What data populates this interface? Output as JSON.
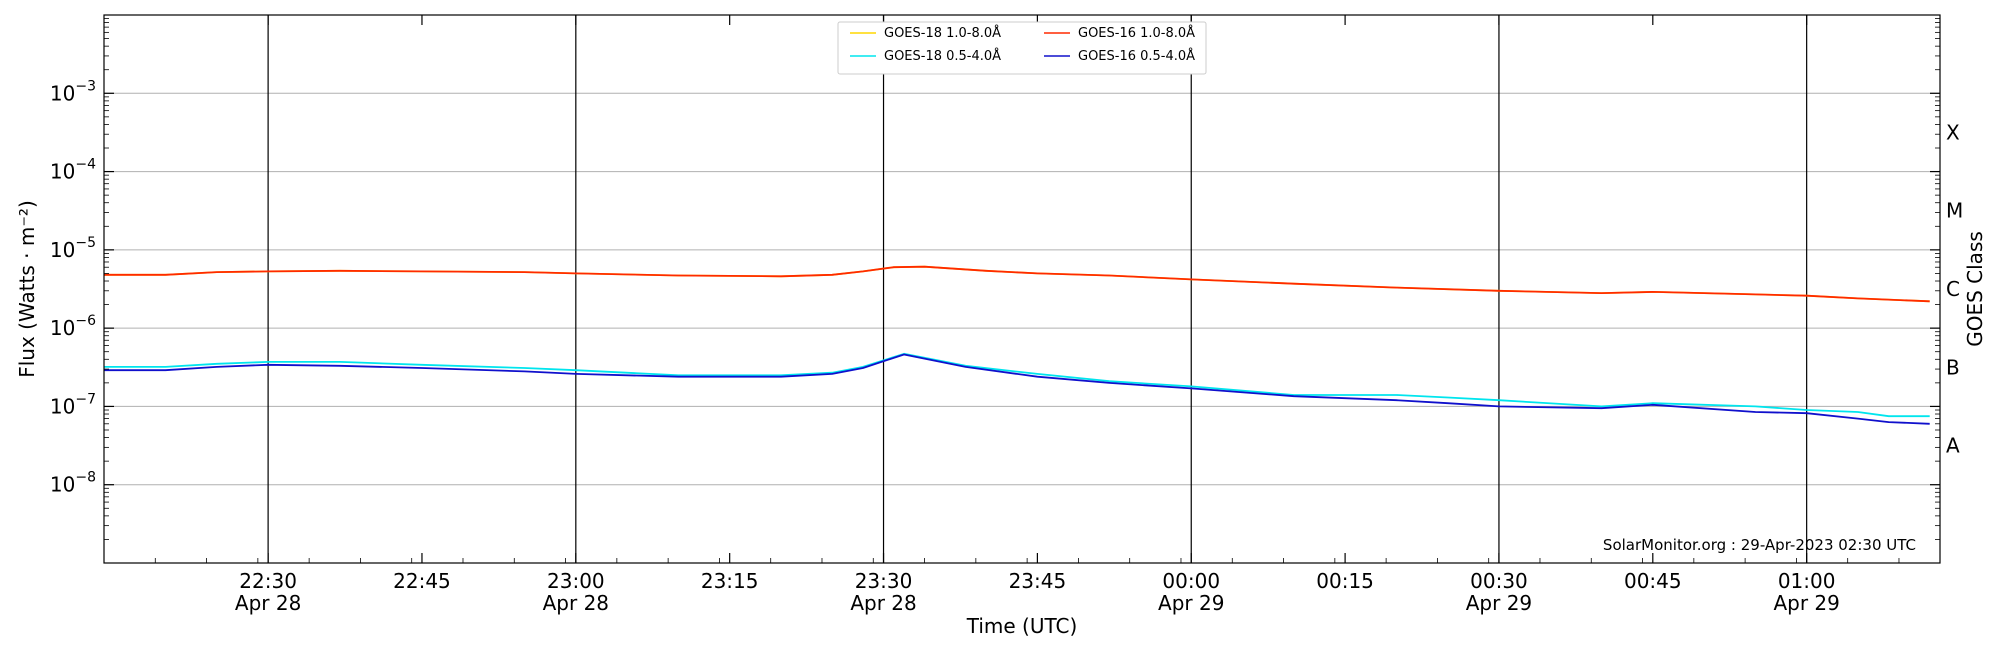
{
  "chart_data": {
    "type": "line",
    "xlabel": "Time (UTC)",
    "ylabel": "Flux (Watts · m⁻²)",
    "ylabel_right": "GOES Class",
    "y_scale": "log",
    "ylim": [
      1e-09,
      0.01
    ],
    "xlim": [
      "2023-04-28 22:14",
      "2023-04-29 01:13"
    ],
    "grid": "horizontal at decades, vertical at 30-minute marks",
    "legend_position": "top-center",
    "credit": "SolarMonitor.org : 29-Apr-2023 02:30 UTC",
    "y_ticks": [
      {
        "value": 1e-08,
        "mant": "10",
        "exp": "−8"
      },
      {
        "value": 1e-07,
        "mant": "10",
        "exp": "−7"
      },
      {
        "value": 1e-06,
        "mant": "10",
        "exp": "−6"
      },
      {
        "value": 1e-05,
        "mant": "10",
        "exp": "−5"
      },
      {
        "value": 0.0001,
        "mant": "10",
        "exp": "−4"
      },
      {
        "value": 0.001,
        "mant": "10",
        "exp": "−3"
      }
    ],
    "x_ticks": [
      {
        "t": "2023-04-28 22:30",
        "time": "22:30",
        "date": "Apr 28"
      },
      {
        "t": "2023-04-28 22:45",
        "time": "22:45",
        "date": ""
      },
      {
        "t": "2023-04-28 23:00",
        "time": "23:00",
        "date": "Apr 28"
      },
      {
        "t": "2023-04-28 23:15",
        "time": "23:15",
        "date": ""
      },
      {
        "t": "2023-04-28 23:30",
        "time": "23:30",
        "date": "Apr 28"
      },
      {
        "t": "2023-04-28 23:45",
        "time": "23:45",
        "date": ""
      },
      {
        "t": "2023-04-29 00:00",
        "time": "00:00",
        "date": "Apr 29"
      },
      {
        "t": "2023-04-29 00:15",
        "time": "00:15",
        "date": ""
      },
      {
        "t": "2023-04-29 00:30",
        "time": "00:30",
        "date": "Apr 29"
      },
      {
        "t": "2023-04-29 00:45",
        "time": "00:45",
        "date": ""
      },
      {
        "t": "2023-04-29 01:00",
        "time": "01:00",
        "date": "Apr 29"
      }
    ],
    "goes_classes": [
      {
        "label": "A",
        "value": 3.16e-08
      },
      {
        "label": "B",
        "value": 3.16e-07
      },
      {
        "label": "C",
        "value": 3.16e-06
      },
      {
        "label": "M",
        "value": 3.16e-05
      },
      {
        "label": "X",
        "value": 0.000316
      }
    ],
    "series": [
      {
        "name": "GOES-18 1.0-8.0Å",
        "color": "#ffd700",
        "x": [
          "2023-04-28 22:14",
          "2023-04-28 22:20",
          "2023-04-28 22:25",
          "2023-04-28 22:30",
          "2023-04-28 22:37",
          "2023-04-28 22:45",
          "2023-04-28 22:55",
          "2023-04-28 23:00",
          "2023-04-28 23:10",
          "2023-04-28 23:20",
          "2023-04-28 23:25",
          "2023-04-28 23:28",
          "2023-04-28 23:31",
          "2023-04-28 23:34",
          "2023-04-28 23:40",
          "2023-04-28 23:45",
          "2023-04-28 23:52",
          "2023-04-29 00:00",
          "2023-04-29 00:10",
          "2023-04-29 00:20",
          "2023-04-29 00:30",
          "2023-04-29 00:40",
          "2023-04-29 00:45",
          "2023-04-29 00:55",
          "2023-04-29 01:00",
          "2023-04-29 01:05",
          "2023-04-29 01:12"
        ],
        "values": [
          4.8e-06,
          4.8e-06,
          5.2e-06,
          5.3e-06,
          5.4e-06,
          5.3e-06,
          5.2e-06,
          5e-06,
          4.7e-06,
          4.6e-06,
          4.8e-06,
          5.3e-06,
          6e-06,
          6.1e-06,
          5.4e-06,
          5e-06,
          4.7e-06,
          4.2e-06,
          3.7e-06,
          3.3e-06,
          3e-06,
          2.8e-06,
          2.9e-06,
          2.7e-06,
          2.6e-06,
          2.4e-06,
          2.2e-06
        ]
      },
      {
        "name": "GOES-18 0.5-4.0Å",
        "color": "#00e5ee",
        "x": [
          "2023-04-28 22:14",
          "2023-04-28 22:20",
          "2023-04-28 22:25",
          "2023-04-28 22:30",
          "2023-04-28 22:37",
          "2023-04-28 22:45",
          "2023-04-28 22:55",
          "2023-04-28 23:00",
          "2023-04-28 23:10",
          "2023-04-28 23:20",
          "2023-04-28 23:25",
          "2023-04-28 23:28",
          "2023-04-28 23:32",
          "2023-04-28 23:38",
          "2023-04-28 23:45",
          "2023-04-28 23:52",
          "2023-04-29 00:00",
          "2023-04-29 00:10",
          "2023-04-29 00:20",
          "2023-04-29 00:25",
          "2023-04-29 00:30",
          "2023-04-29 00:40",
          "2023-04-29 00:45",
          "2023-04-29 00:55",
          "2023-04-29 01:00",
          "2023-04-29 01:05",
          "2023-04-29 01:08",
          "2023-04-29 01:12"
        ],
        "values": [
          3.2e-07,
          3.2e-07,
          3.5e-07,
          3.7e-07,
          3.7e-07,
          3.4e-07,
          3.1e-07,
          2.9e-07,
          2.5e-07,
          2.5e-07,
          2.7e-07,
          3.2e-07,
          4.7e-07,
          3.3e-07,
          2.6e-07,
          2.1e-07,
          1.8e-07,
          1.4e-07,
          1.4e-07,
          1.3e-07,
          1.2e-07,
          1e-07,
          1.1e-07,
          1e-07,
          9e-08,
          8.5e-08,
          7.5e-08,
          7.5e-08
        ]
      },
      {
        "name": "GOES-16 1.0-8.0Å",
        "color": "#ff2a00",
        "x": [
          "2023-04-28 22:14",
          "2023-04-28 22:20",
          "2023-04-28 22:25",
          "2023-04-28 22:30",
          "2023-04-28 22:37",
          "2023-04-28 22:45",
          "2023-04-28 22:55",
          "2023-04-28 23:00",
          "2023-04-28 23:10",
          "2023-04-28 23:20",
          "2023-04-28 23:25",
          "2023-04-28 23:28",
          "2023-04-28 23:31",
          "2023-04-28 23:34",
          "2023-04-28 23:40",
          "2023-04-28 23:45",
          "2023-04-28 23:52",
          "2023-04-29 00:00",
          "2023-04-29 00:10",
          "2023-04-29 00:20",
          "2023-04-29 00:30",
          "2023-04-29 00:40",
          "2023-04-29 00:45",
          "2023-04-29 00:55",
          "2023-04-29 01:00",
          "2023-04-29 01:05",
          "2023-04-29 01:12"
        ],
        "values": [
          4.8e-06,
          4.8e-06,
          5.2e-06,
          5.3e-06,
          5.4e-06,
          5.3e-06,
          5.2e-06,
          5e-06,
          4.7e-06,
          4.6e-06,
          4.8e-06,
          5.3e-06,
          6e-06,
          6.1e-06,
          5.4e-06,
          5e-06,
          4.7e-06,
          4.2e-06,
          3.7e-06,
          3.3e-06,
          3e-06,
          2.8e-06,
          2.9e-06,
          2.7e-06,
          2.6e-06,
          2.4e-06,
          2.2e-06
        ]
      },
      {
        "name": "GOES-16 0.5-4.0Å",
        "color": "#1010cc",
        "x": [
          "2023-04-28 22:14",
          "2023-04-28 22:20",
          "2023-04-28 22:25",
          "2023-04-28 22:30",
          "2023-04-28 22:37",
          "2023-04-28 22:45",
          "2023-04-28 22:55",
          "2023-04-28 23:00",
          "2023-04-28 23:10",
          "2023-04-28 23:20",
          "2023-04-28 23:25",
          "2023-04-28 23:28",
          "2023-04-28 23:32",
          "2023-04-28 23:38",
          "2023-04-28 23:45",
          "2023-04-28 23:52",
          "2023-04-29 00:00",
          "2023-04-29 00:10",
          "2023-04-29 00:20",
          "2023-04-29 00:25",
          "2023-04-29 00:30",
          "2023-04-29 00:40",
          "2023-04-29 00:45",
          "2023-04-29 00:55",
          "2023-04-29 01:00",
          "2023-04-29 01:05",
          "2023-04-29 01:08",
          "2023-04-29 01:12"
        ],
        "values": [
          2.9e-07,
          2.9e-07,
          3.2e-07,
          3.4e-07,
          3.3e-07,
          3.1e-07,
          2.8e-07,
          2.6e-07,
          2.4e-07,
          2.4e-07,
          2.6e-07,
          3.1e-07,
          4.6e-07,
          3.2e-07,
          2.4e-07,
          2e-07,
          1.7e-07,
          1.35e-07,
          1.2e-07,
          1.1e-07,
          1e-07,
          9.5e-08,
          1.05e-07,
          8.5e-08,
          8.2e-08,
          7e-08,
          6.3e-08,
          6e-08
        ]
      }
    ]
  }
}
